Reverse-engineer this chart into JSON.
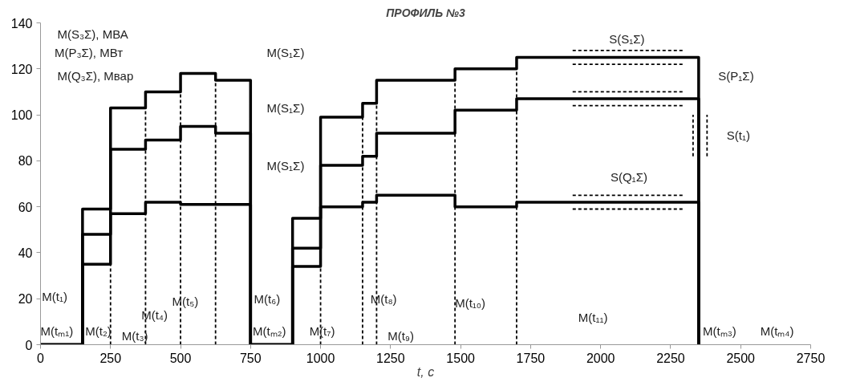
{
  "chart_data": {
    "type": "step",
    "title": "ПРОФИЛЬ №3",
    "xlabel": "t, с",
    "xlim": [
      0,
      2750
    ],
    "xticks": [
      0,
      250,
      500,
      750,
      1000,
      1250,
      1500,
      1750,
      2000,
      2250,
      2500,
      2750
    ],
    "ylim": [
      0,
      140
    ],
    "yticks": [
      0,
      20,
      40,
      60,
      80,
      100,
      120,
      140
    ],
    "grid": false,
    "series": [
      {
        "color": "#000000",
        "x": [
          0,
          150,
          250,
          375,
          500,
          625,
          750,
          900,
          1000,
          1150,
          1200,
          1480,
          1700,
          2350
        ],
        "values": [
          0,
          59,
          103,
          110,
          118,
          115,
          0,
          55,
          99,
          105,
          115,
          120,
          125,
          0
        ]
      },
      {
        "color": "#000000",
        "x": [
          0,
          150,
          250,
          375,
          500,
          625,
          750,
          900,
          1000,
          1150,
          1200,
          1480,
          1700,
          2350
        ],
        "values": [
          0,
          48,
          85,
          89,
          95,
          92,
          0,
          42,
          78,
          82,
          92,
          102,
          107,
          0
        ]
      },
      {
        "color": "#000000",
        "x": [
          0,
          150,
          250,
          375,
          500,
          625,
          750,
          900,
          1000,
          1150,
          1200,
          1480,
          1700,
          2350
        ],
        "values": [
          0,
          35,
          57,
          62,
          61,
          61,
          0,
          34,
          60,
          62,
          65,
          60,
          62,
          0
        ]
      },
      {
        "type": "line",
        "line_style": "dashed",
        "color": "#000000",
        "x": [
          250,
          250
        ],
        "values": [
          0,
          35
        ]
      },
      {
        "type": "line",
        "line_style": "dashed",
        "color": "#000000",
        "x": [
          375,
          375
        ],
        "values": [
          0,
          103
        ]
      },
      {
        "type": "line",
        "line_style": "dashed",
        "color": "#000000",
        "x": [
          500,
          500
        ],
        "values": [
          0,
          110
        ]
      },
      {
        "type": "line",
        "line_style": "dashed",
        "color": "#000000",
        "x": [
          625,
          625
        ],
        "values": [
          0,
          115
        ]
      },
      {
        "type": "line",
        "line_style": "dashed",
        "color": "#000000",
        "x": [
          1000,
          1000
        ],
        "values": [
          0,
          34
        ]
      },
      {
        "type": "line",
        "line_style": "dashed",
        "color": "#000000",
        "x": [
          1150,
          1150
        ],
        "values": [
          0,
          99
        ]
      },
      {
        "type": "line",
        "line_style": "dashed",
        "color": "#000000",
        "x": [
          1200,
          1200
        ],
        "values": [
          0,
          105
        ]
      },
      {
        "type": "line",
        "line_style": "dashed",
        "color": "#000000",
        "x": [
          1480,
          1480
        ],
        "values": [
          0,
          115
        ]
      },
      {
        "type": "line",
        "line_style": "dashed",
        "color": "#000000",
        "x": [
          1700,
          1700
        ],
        "values": [
          0,
          120
        ]
      },
      {
        "type": "line",
        "line_style": "dashed",
        "color": "#000000",
        "x": [
          1900,
          2300
        ],
        "values": [
          128,
          128
        ]
      },
      {
        "type": "line",
        "line_style": "dashed",
        "color": "#000000",
        "x": [
          1900,
          2300
        ],
        "values": [
          122,
          122
        ]
      },
      {
        "type": "line",
        "line_style": "dashed",
        "color": "#000000",
        "x": [
          1900,
          2300
        ],
        "values": [
          110,
          110
        ]
      },
      {
        "type": "line",
        "line_style": "dashed",
        "color": "#000000",
        "x": [
          1900,
          2300
        ],
        "values": [
          104,
          104
        ]
      },
      {
        "type": "line",
        "line_style": "dashed",
        "color": "#000000",
        "x": [
          1900,
          2300
        ],
        "values": [
          65,
          65
        ]
      },
      {
        "type": "line",
        "line_style": "dashed",
        "color": "#000000",
        "x": [
          1900,
          2300
        ],
        "values": [
          59,
          59
        ]
      },
      {
        "type": "line",
        "line_style": "dashed",
        "color": "#000000",
        "x": [
          2330,
          2330
        ],
        "values": [
          82,
          100
        ]
      },
      {
        "type": "line",
        "line_style": "dashed",
        "color": "#000000",
        "x": [
          2380,
          2380
        ],
        "values": [
          82,
          100
        ]
      }
    ],
    "annotations": [
      "M(S₃Σ), МВА",
      "M(P₃Σ), МВт",
      "M(Q₃Σ), Мвар",
      "M(S₁Σ)",
      "M(S₁Σ)",
      "M(S₁Σ)",
      "M(t₁)",
      "M(tₘ₁)",
      "M(t₂)",
      "M(t₃)",
      "M(t₄)",
      "M(t₅)",
      "M(t₆)",
      "M(tₘ₂)",
      "M(t₇)",
      "M(t₈)",
      "M(t₉)",
      "M(t₁₀)",
      "M(t₁₁)",
      "M(tₘ₃)",
      "M(tₘ₄)",
      "S(S₁Σ)",
      "S(P₁Σ)",
      "S(t₁)",
      "S(Q₁Σ)"
    ]
  }
}
